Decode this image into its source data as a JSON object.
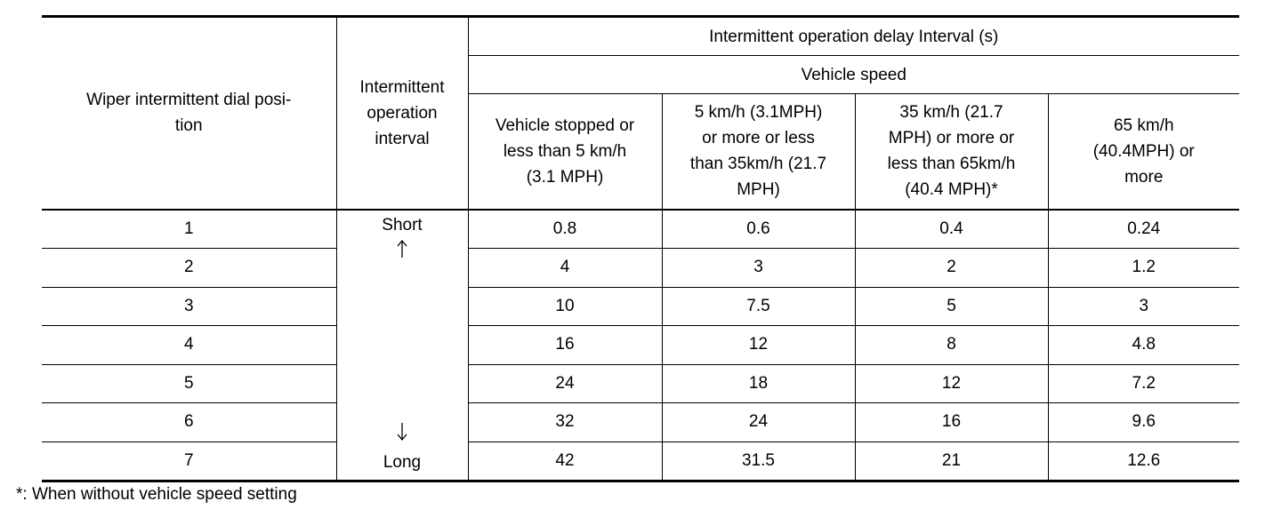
{
  "table": {
    "headers": {
      "dial_position": "Wiper intermittent dial posi-\ntion",
      "interval": "Intermittent\noperation\ninterval",
      "delay": "Intermittent operation delay Interval (s)",
      "speed": "Vehicle speed",
      "speed_ranges": [
        "Vehicle stopped or\nless than 5 km/h\n(3.1 MPH)",
        "5 km/h (3.1MPH)\nor more or less\nthan 35km/h (21.7\nMPH)",
        "35 km/h (21.7\nMPH) or more or\nless than 65km/h\n(40.4 MPH)*",
        "65 km/h\n(40.4MPH) or\nmore"
      ]
    },
    "interval_labels": {
      "short": "Short",
      "long": "Long"
    },
    "rows": [
      [
        1,
        0.8,
        0.6,
        0.4,
        0.24
      ],
      [
        2,
        4,
        3,
        2,
        1.2
      ],
      [
        3,
        10,
        7.5,
        5,
        3
      ],
      [
        4,
        16,
        12,
        8,
        4.8
      ],
      [
        5,
        24,
        18,
        12,
        7.2
      ],
      [
        6,
        32,
        24,
        16,
        9.6
      ],
      [
        7,
        42,
        31.5,
        21,
        12.6
      ]
    ]
  },
  "footnote": "*: When without vehicle speed setting"
}
